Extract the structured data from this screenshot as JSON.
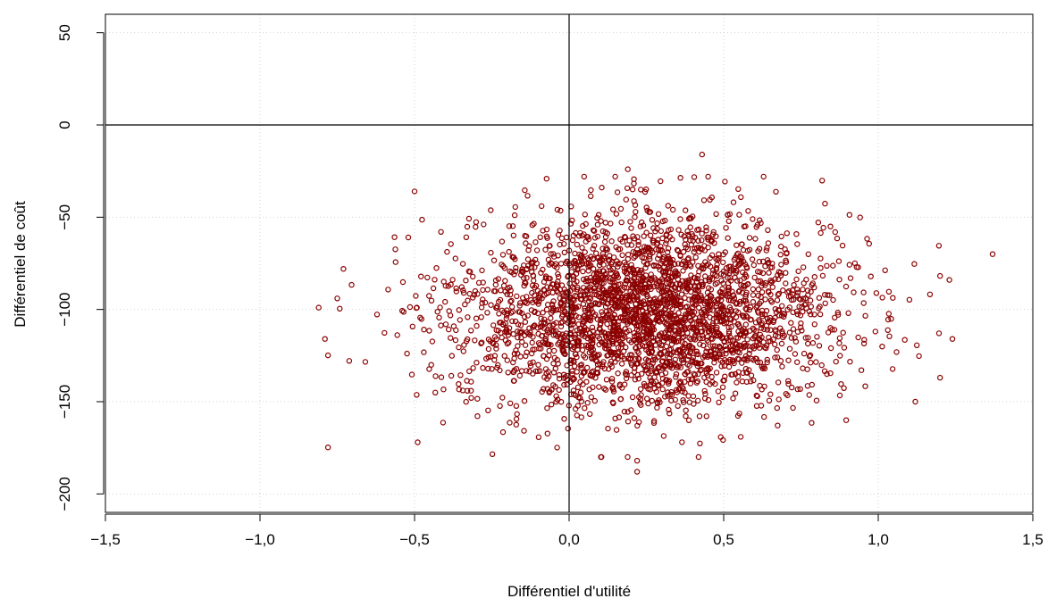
{
  "chart_data": {
    "type": "scatter",
    "title": "",
    "xlabel": "Différentiel d'utilité",
    "ylabel": "Différentiel de coût",
    "xlim": [
      -1.5,
      1.5
    ],
    "ylim": [
      -210,
      60
    ],
    "x_ticks": [
      -1.5,
      -1.0,
      -0.5,
      0.0,
      0.5,
      1.0,
      1.5
    ],
    "x_tick_labels": [
      "−1,5",
      "−1,0",
      "−0,5",
      "0,0",
      "0,5",
      "1,0",
      "1,5"
    ],
    "y_ticks": [
      -200,
      -150,
      -100,
      -50,
      0,
      50
    ],
    "y_tick_labels": [
      "−200",
      "−150",
      "−100",
      "−50",
      "0",
      "50"
    ],
    "grid": true,
    "reference_lines": {
      "x": 0,
      "y": 0
    },
    "marker_color": "#8B0000",
    "n_points": 3000,
    "distribution": {
      "x_mean": 0.25,
      "x_sd": 0.3,
      "y_mean": -102,
      "y_sd": 26
    },
    "extreme_points": [
      {
        "x": 1.37,
        "y": -70
      },
      {
        "x": 1.24,
        "y": -116
      },
      {
        "x": 1.12,
        "y": -150
      },
      {
        "x": 1.23,
        "y": -84
      },
      {
        "x": -0.81,
        "y": -99
      },
      {
        "x": -0.79,
        "y": -116
      },
      {
        "x": -0.75,
        "y": -94
      },
      {
        "x": -0.73,
        "y": -78
      },
      {
        "x": 0.43,
        "y": -16
      },
      {
        "x": 0.19,
        "y": -24
      },
      {
        "x": 0.22,
        "y": -188
      },
      {
        "x": 0.22,
        "y": -182
      },
      {
        "x": -0.49,
        "y": -172
      },
      {
        "x": -0.5,
        "y": -36
      }
    ]
  }
}
